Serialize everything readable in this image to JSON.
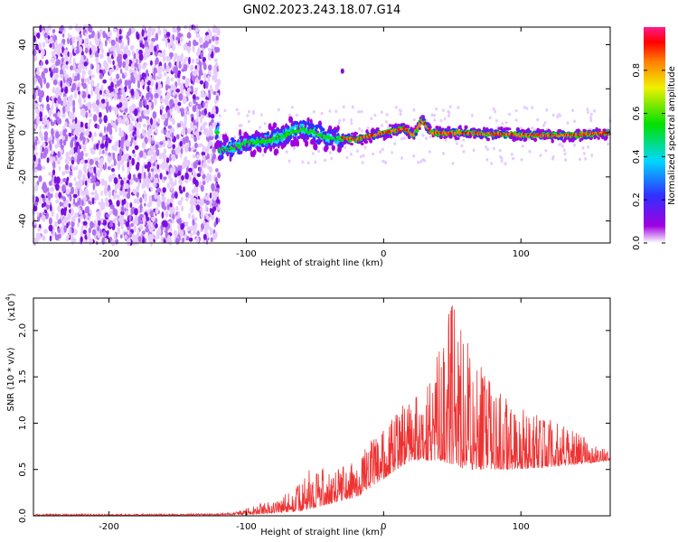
{
  "title": "GN02.2023.243.18.07.G14",
  "chart_data": [
    {
      "type": "heatmap",
      "xlabel": "Height of straight line (km)",
      "ylabel": "Frequency (Hz)",
      "xlim": [
        -255,
        165
      ],
      "ylim": [
        -50,
        48
      ],
      "xticks": [
        -200,
        -100,
        0,
        100
      ],
      "yticks": [
        -40,
        -20,
        0,
        20,
        40
      ],
      "colorbar": {
        "label": "Normalized spectral amplitude",
        "range": [
          0.0,
          1.0
        ],
        "ticks": [
          "0.0",
          "0.2",
          "0.4",
          "0.6",
          "0.8"
        ],
        "colors": [
          "#ffffff",
          "#a000e0",
          "#3030ff",
          "#00d8ff",
          "#00e000",
          "#f0f000",
          "#ff8000",
          "#ff0000",
          "#ff1a8c"
        ]
      },
      "features": {
        "noise_region_x": [
          -255,
          -120
        ],
        "signal_trace_x": [
          -120,
          165
        ],
        "trace_center_hz": [
          {
            "x": -120,
            "y": -8
          },
          {
            "x": -100,
            "y": -5
          },
          {
            "x": -80,
            "y": -3
          },
          {
            "x": -60,
            "y": 2
          },
          {
            "x": -40,
            "y": -2
          },
          {
            "x": -20,
            "y": -3
          },
          {
            "x": 0,
            "y": 0
          },
          {
            "x": 15,
            "y": 2
          },
          {
            "x": 22,
            "y": -1
          },
          {
            "x": 28,
            "y": 6
          },
          {
            "x": 35,
            "y": 0
          },
          {
            "x": 60,
            "y": 0
          },
          {
            "x": 100,
            "y": -1
          },
          {
            "x": 140,
            "y": -1
          },
          {
            "x": 165,
            "y": 0
          }
        ],
        "isolated_point": {
          "x": -30,
          "y": 28
        }
      }
    },
    {
      "type": "line",
      "xlabel": "Height of straight line (km)",
      "ylabel": "SNR (10 * v/v)",
      "scale_note": "(x10",
      "scale_exp": "4",
      "scale_close": ")",
      "xlim": [
        -255,
        165
      ],
      "ylim": [
        0,
        2.35
      ],
      "xticks": [
        -200,
        -100,
        0,
        100
      ],
      "yticks": [
        "0.0",
        "0.5",
        "1.0",
        "1.5",
        "2.0"
      ],
      "series": [
        {
          "color": "#ee3333",
          "envelope": [
            {
              "x": -255,
              "y": 0.02
            },
            {
              "x": -150,
              "y": 0.02
            },
            {
              "x": -110,
              "y": 0.03
            },
            {
              "x": -100,
              "y": 0.08
            },
            {
              "x": -80,
              "y": 0.18
            },
            {
              "x": -60,
              "y": 0.35
            },
            {
              "x": -50,
              "y": 0.6
            },
            {
              "x": -40,
              "y": 0.45
            },
            {
              "x": -20,
              "y": 0.6
            },
            {
              "x": -10,
              "y": 0.8
            },
            {
              "x": 0,
              "y": 0.95
            },
            {
              "x": 20,
              "y": 1.3
            },
            {
              "x": 35,
              "y": 1.5
            },
            {
              "x": 45,
              "y": 2.1
            },
            {
              "x": 50,
              "y": 2.35
            },
            {
              "x": 60,
              "y": 1.9
            },
            {
              "x": 80,
              "y": 1.4
            },
            {
              "x": 100,
              "y": 1.2
            },
            {
              "x": 120,
              "y": 1.05
            },
            {
              "x": 140,
              "y": 0.9
            },
            {
              "x": 165,
              "y": 0.7
            }
          ],
          "baseline": [
            {
              "x": -255,
              "y": 0.0
            },
            {
              "x": -100,
              "y": 0.01
            },
            {
              "x": -60,
              "y": 0.05
            },
            {
              "x": -20,
              "y": 0.2
            },
            {
              "x": 0,
              "y": 0.4
            },
            {
              "x": 20,
              "y": 0.6
            },
            {
              "x": 40,
              "y": 0.6
            },
            {
              "x": 60,
              "y": 0.5
            },
            {
              "x": 100,
              "y": 0.5
            },
            {
              "x": 140,
              "y": 0.55
            },
            {
              "x": 165,
              "y": 0.6
            }
          ]
        }
      ]
    }
  ]
}
